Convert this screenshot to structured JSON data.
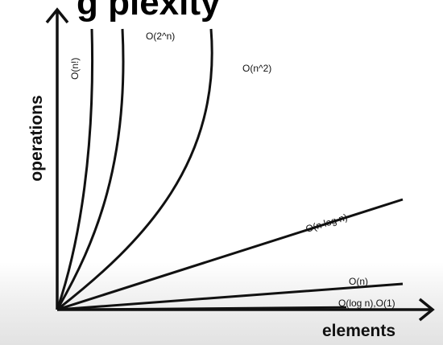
{
  "title_fragment": "g      plexity",
  "y_axis_label": "operations",
  "x_axis_label": "elements",
  "curves": [
    {
      "id": "factorial",
      "label": "O(n!)"
    },
    {
      "id": "exponential",
      "label": "O(2^n)"
    },
    {
      "id": "quadratic",
      "label": "O(n^2)"
    },
    {
      "id": "nlogn",
      "label": "O(n log n)"
    },
    {
      "id": "linear",
      "label": "O(n)"
    },
    {
      "id": "log_const",
      "label": "O(log n),O(1)"
    }
  ],
  "colors": {
    "ink": "#111111",
    "background": "#ffffff"
  }
}
